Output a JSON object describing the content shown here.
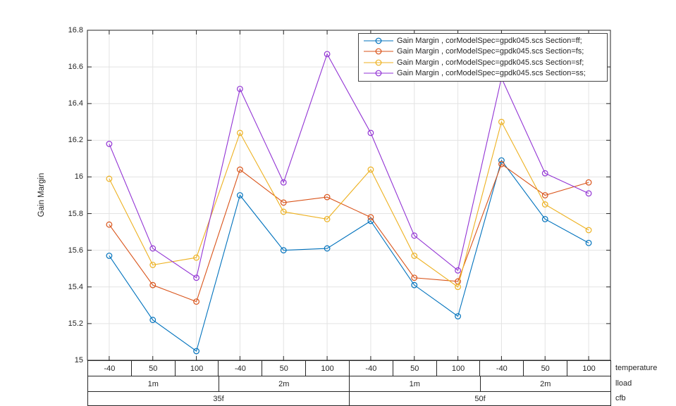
{
  "chart_data": {
    "type": "line",
    "title": "",
    "ylabel": "Gain Margin",
    "ylim": [
      15,
      16.8
    ],
    "yticks": [
      15,
      15.2,
      15.4,
      15.6,
      15.8,
      16,
      16.2,
      16.4,
      16.6,
      16.8
    ],
    "grid": true,
    "legend_position": "top-right-inside",
    "marker": "o",
    "categories": [
      "-40",
      "50",
      "100",
      "-40",
      "50",
      "100",
      "-40",
      "50",
      "100",
      "-40",
      "50",
      "100"
    ],
    "series": [
      {
        "name": "Gain Margin , corModelSpec=gpdk045.scs Section=ff;",
        "color": "#0072BD",
        "values": [
          15.57,
          15.22,
          15.05,
          15.9,
          15.6,
          15.61,
          15.76,
          15.41,
          15.24,
          16.09,
          15.77,
          15.64
        ]
      },
      {
        "name": "Gain Margin , corModelSpec=gpdk045.scs Section=fs;",
        "color": "#D95319",
        "values": [
          15.74,
          15.41,
          15.32,
          16.04,
          15.86,
          15.89,
          15.78,
          15.45,
          15.43,
          16.07,
          15.9,
          15.97
        ]
      },
      {
        "name": "Gain Margin , corModelSpec=gpdk045.scs Section=sf;",
        "color": "#EDB120",
        "values": [
          15.99,
          15.52,
          15.56,
          16.24,
          15.81,
          15.77,
          16.04,
          15.57,
          15.4,
          16.3,
          15.85,
          15.71
        ]
      },
      {
        "name": "Gain Margin , corModelSpec=gpdk045.scs Section=ss;",
        "color": "#9233D4",
        "values": [
          16.18,
          15.61,
          15.45,
          16.48,
          15.97,
          16.67,
          16.24,
          15.68,
          15.49,
          16.54,
          16.02,
          15.91
        ]
      }
    ],
    "x_axis_rows": [
      {
        "label": "temperature",
        "cells": [
          {
            "text": "-40",
            "span": 1
          },
          {
            "text": "50",
            "span": 1
          },
          {
            "text": "100",
            "span": 1
          },
          {
            "text": "-40",
            "span": 1
          },
          {
            "text": "50",
            "span": 1
          },
          {
            "text": "100",
            "span": 1
          },
          {
            "text": "-40",
            "span": 1
          },
          {
            "text": "50",
            "span": 1
          },
          {
            "text": "100",
            "span": 1
          },
          {
            "text": "-40",
            "span": 1
          },
          {
            "text": "50",
            "span": 1
          },
          {
            "text": "100",
            "span": 1
          }
        ]
      },
      {
        "label": "lload",
        "cells": [
          {
            "text": "1m",
            "span": 3
          },
          {
            "text": "2m",
            "span": 3
          },
          {
            "text": "1m",
            "span": 3
          },
          {
            "text": "2m",
            "span": 3
          }
        ]
      },
      {
        "label": "cfb",
        "cells": [
          {
            "text": "35f",
            "span": 6
          },
          {
            "text": "50f",
            "span": 6
          }
        ]
      }
    ],
    "colors": {
      "grid": "#e3e3e3",
      "axis": "#262626",
      "text": "#262626",
      "legend_border": "#444444",
      "background": "#ffffff"
    }
  }
}
